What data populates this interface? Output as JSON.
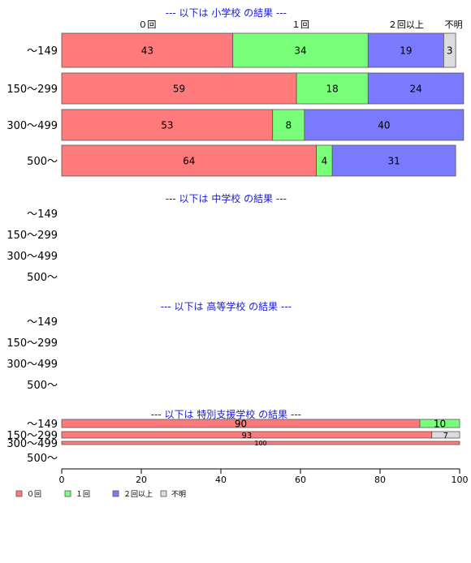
{
  "chart_data": {
    "type": "bar",
    "orientation": "horizontal",
    "stacked": true,
    "xlim": [
      0,
      100
    ],
    "x_ticks": [
      "0",
      "20",
      "40",
      "60",
      "80",
      "100"
    ],
    "legend_placement": "bottom-left",
    "grid": false,
    "categories": [
      "～149",
      "150～299",
      "300～499",
      "500～"
    ],
    "series_names": [
      "０回",
      "１回",
      "２回以上",
      "不明"
    ],
    "series_colors": [
      "#ff7a7a",
      "#7aff7a",
      "#7a7aff",
      "#dcdcdc"
    ],
    "top_labels": [
      {
        "text": "０回",
        "value": 21.5
      },
      {
        "text": "１回",
        "value": 60
      },
      {
        "text": "２回以上",
        "value": 86.5
      },
      {
        "text": "不明",
        "value": 98.5
      }
    ],
    "panels": [
      {
        "title": "--- 以下は 小学校 の結果 ---",
        "rows": [
          {
            "category": "～149",
            "values": [
              43,
              34,
              19,
              3
            ]
          },
          {
            "category": "150～299",
            "values": [
              59,
              18,
              24,
              0
            ]
          },
          {
            "category": "300～499",
            "values": [
              53,
              8,
              40,
              0
            ]
          },
          {
            "category": "500～",
            "values": [
              64,
              4,
              31,
              0
            ]
          }
        ]
      },
      {
        "title": "--- 以下は 中学校 の結果 ---",
        "rows": [
          {
            "category": "～149",
            "values": null
          },
          {
            "category": "150～299",
            "values": null
          },
          {
            "category": "300～499",
            "values": null
          },
          {
            "category": "500～",
            "values": null
          }
        ]
      },
      {
        "title": "--- 以下は 高等学校 の結果 ---",
        "rows": [
          {
            "category": "～149",
            "values": null
          },
          {
            "category": "150～299",
            "values": null
          },
          {
            "category": "300～499",
            "values": null
          },
          {
            "category": "500～",
            "values": null
          }
        ]
      },
      {
        "title": "--- 以下は 特別支援学校 の結果 ---",
        "rows": [
          {
            "category": "～149",
            "values": [
              90,
              10,
              0,
              0
            ]
          },
          {
            "category": "150～299",
            "values": [
              93,
              0,
              0,
              7
            ]
          },
          {
            "category": "300～499",
            "values": [
              100,
              0,
              0,
              0
            ]
          },
          {
            "category": "500～",
            "values": null
          }
        ]
      }
    ]
  }
}
